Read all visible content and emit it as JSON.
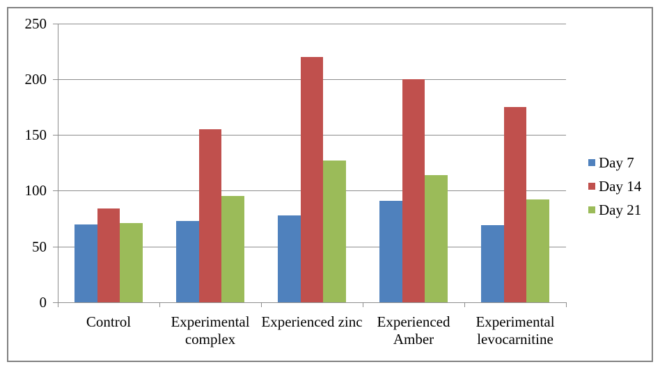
{
  "chart_data": {
    "type": "bar",
    "title": "",
    "xlabel": "",
    "ylabel": "",
    "categories": [
      "Control",
      "Experimental complex",
      "Experienced zinc",
      "Experienced Amber",
      "Experimental levocarnitine"
    ],
    "category_label_lines": [
      "Control",
      "Experimental\ncomplex",
      "Experienced zinc",
      "Experienced\nAmber",
      "Experimental\nlevocarnitine"
    ],
    "series": [
      {
        "name": "Day 7",
        "color": "#4F81BD",
        "values": [
          70,
          73,
          78,
          91,
          69
        ]
      },
      {
        "name": "Day 14",
        "color": "#C0504D",
        "values": [
          84,
          155,
          220,
          200,
          175
        ]
      },
      {
        "name": "Day 21",
        "color": "#9BBB59",
        "values": [
          71,
          95,
          127,
          114,
          92
        ]
      }
    ],
    "ylim": [
      0,
      250
    ],
    "yticks": [
      0,
      50,
      100,
      150,
      200,
      250
    ],
    "grid": true,
    "legend_position": "right"
  },
  "colors": {
    "axis": "#8c8c8c",
    "gridline": "#8c8c8c",
    "frame_border": "#808080",
    "text": "#000000",
    "background": "#ffffff"
  }
}
